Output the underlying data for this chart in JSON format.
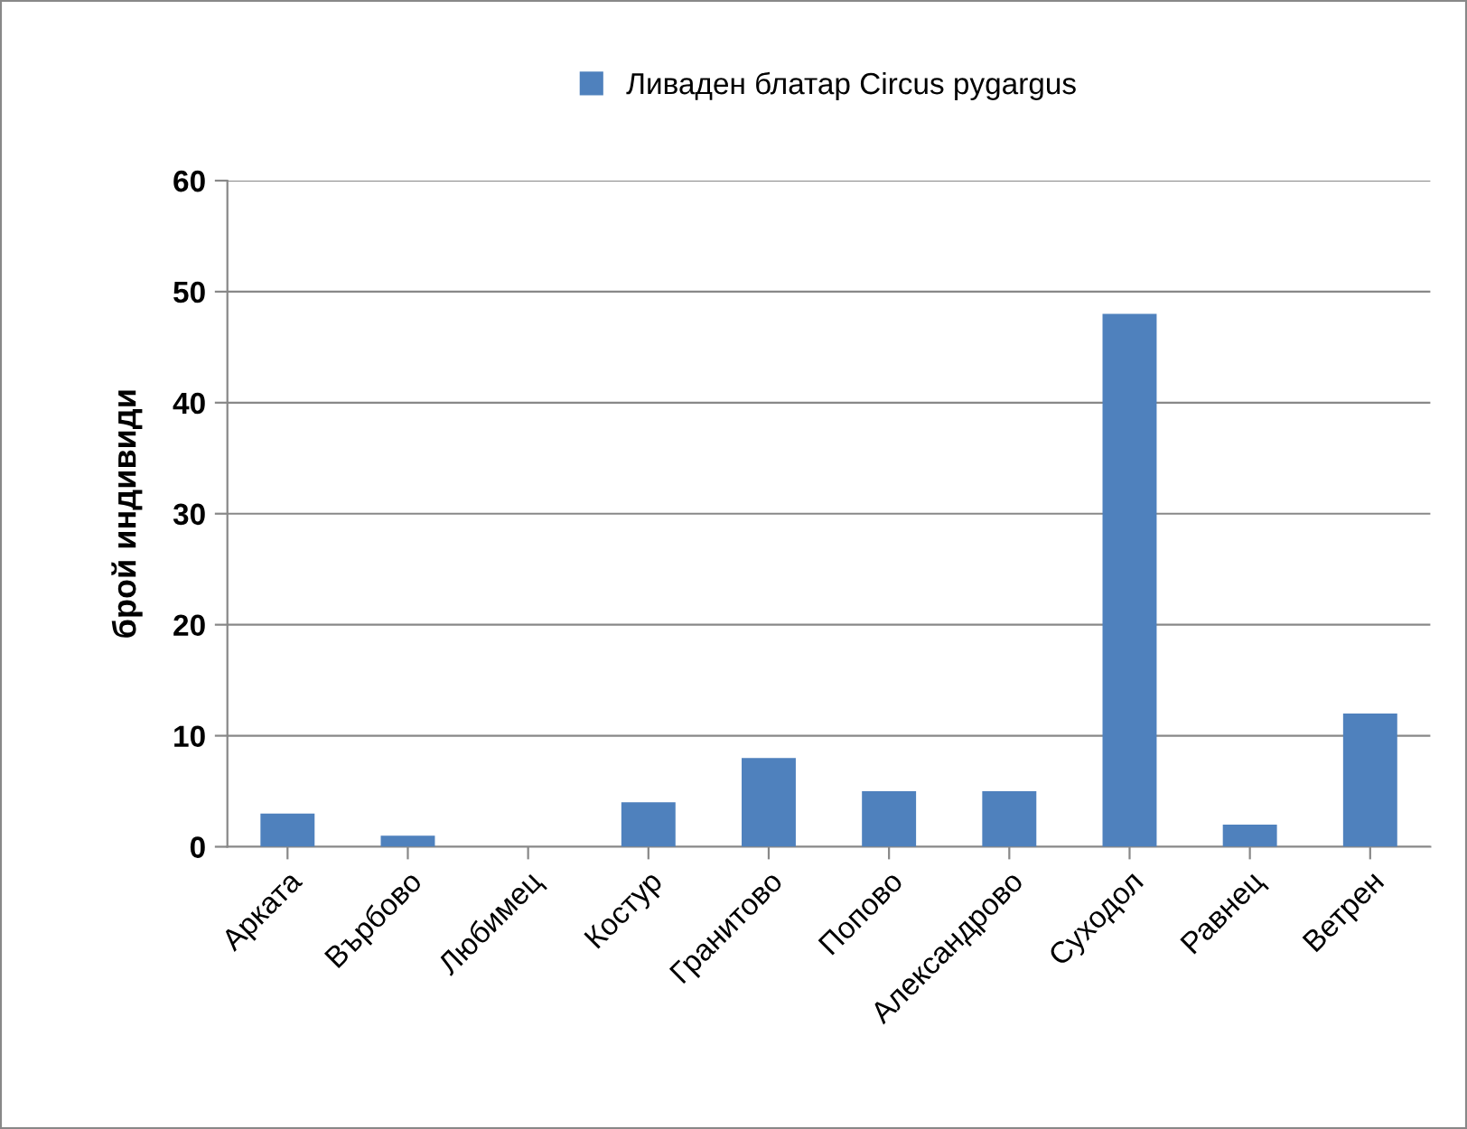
{
  "chart_data": {
    "type": "bar",
    "categories": [
      "Арката",
      "Върбово",
      "Любимец",
      "Костур",
      "Гранитово",
      "Попово",
      "Александрово",
      "Суходол",
      "Равнец",
      "Ветрен"
    ],
    "series": [
      {
        "name": "Ливаден блатар Circus pygargus",
        "color": "#4f81bd",
        "values": [
          3,
          1,
          0,
          4,
          8,
          5,
          5,
          48,
          2,
          12
        ]
      }
    ],
    "ylabel": "брой индивиди",
    "ylim": [
      0,
      60
    ],
    "yticks": [
      0,
      10,
      20,
      30,
      40,
      50,
      60
    ],
    "grid": "y",
    "legend": "top"
  }
}
